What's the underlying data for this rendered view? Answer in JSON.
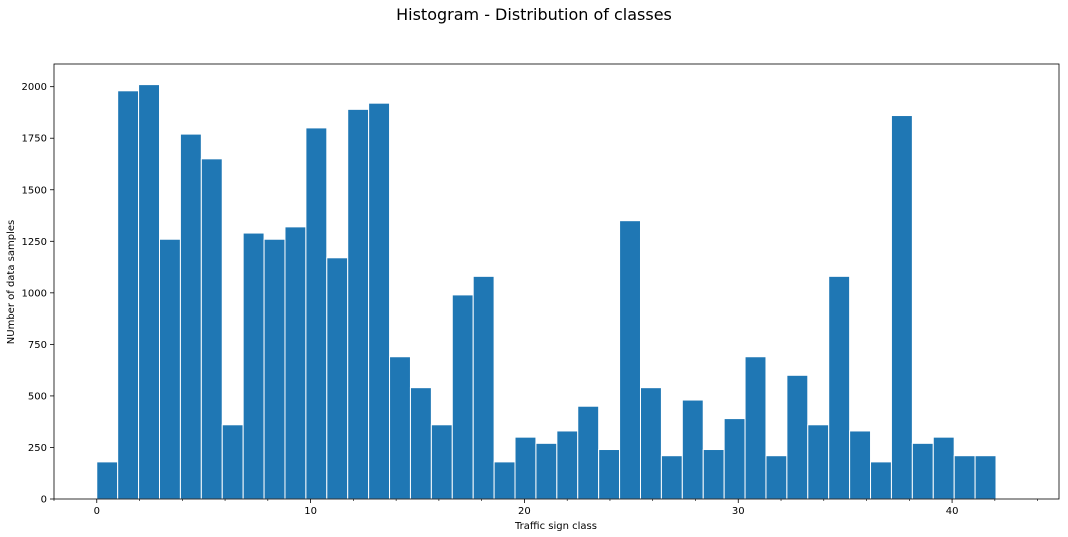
{
  "chart_data": {
    "type": "bar",
    "title": "Histogram - Distribution of classes",
    "xlabel": "Traffic sign class",
    "ylabel": "NUmber of data samples",
    "x": [
      0,
      1,
      2,
      3,
      4,
      5,
      6,
      7,
      8,
      9,
      10,
      11,
      12,
      13,
      14,
      15,
      16,
      17,
      18,
      19,
      20,
      21,
      22,
      23,
      24,
      25,
      26,
      27,
      28,
      29,
      30,
      31,
      32,
      33,
      34,
      35,
      36,
      37,
      38,
      39,
      40,
      41,
      42
    ],
    "values": [
      180,
      1980,
      2010,
      1260,
      1770,
      1650,
      360,
      1290,
      1260,
      1320,
      1800,
      1170,
      1890,
      1920,
      690,
      540,
      360,
      990,
      1080,
      180,
      300,
      270,
      330,
      450,
      240,
      1350,
      540,
      210,
      480,
      240,
      390,
      690,
      210,
      600,
      360,
      1080,
      330,
      180,
      1860,
      270,
      300,
      210,
      210
    ],
    "xlim": [
      -2,
      45
    ],
    "ylim": [
      0,
      2110
    ],
    "xticks": [
      0,
      10,
      20,
      30,
      40
    ],
    "xtick_labels": [
      "0",
      "10",
      "20",
      "30",
      "40"
    ],
    "yticks": [
      0,
      250,
      500,
      750,
      1000,
      1250,
      1500,
      1750,
      2000
    ],
    "ytick_labels": [
      "0",
      "250",
      "500",
      "750",
      "1000",
      "1250",
      "1500",
      "1750",
      "2000"
    ],
    "grid": false,
    "legend": "none",
    "bar_color": "#1f77b4",
    "edge_color": "#ffffff"
  }
}
